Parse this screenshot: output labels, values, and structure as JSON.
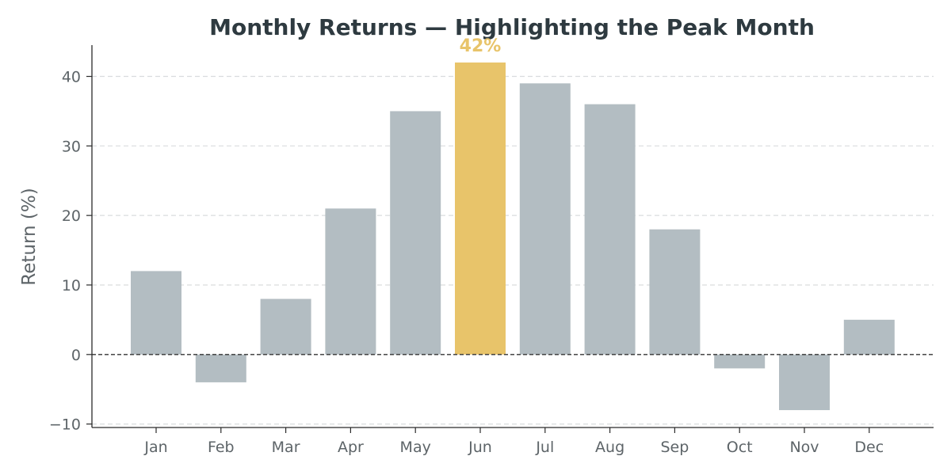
{
  "chart_data": {
    "type": "bar",
    "title": "Monthly Returns — Highlighting the Peak Month",
    "xlabel": "",
    "ylabel": "Return (%)",
    "categories": [
      "Jan",
      "Feb",
      "Mar",
      "Apr",
      "May",
      "Jun",
      "Jul",
      "Aug",
      "Sep",
      "Oct",
      "Nov",
      "Dec"
    ],
    "values": [
      12,
      -4,
      8,
      21,
      35,
      42,
      39,
      36,
      18,
      -2,
      -8,
      5
    ],
    "ylim": [
      -10.5,
      44.5
    ],
    "yticks": [
      -10,
      0,
      10,
      20,
      30,
      40
    ],
    "ytick_labels": [
      "−10",
      "0",
      "10",
      "20",
      "30",
      "40"
    ],
    "grid": true,
    "highlight": {
      "category": "Jun",
      "label": "42%"
    },
    "colors": {
      "bar": "#b3bdc2",
      "highlight": "#e8c46a"
    }
  }
}
